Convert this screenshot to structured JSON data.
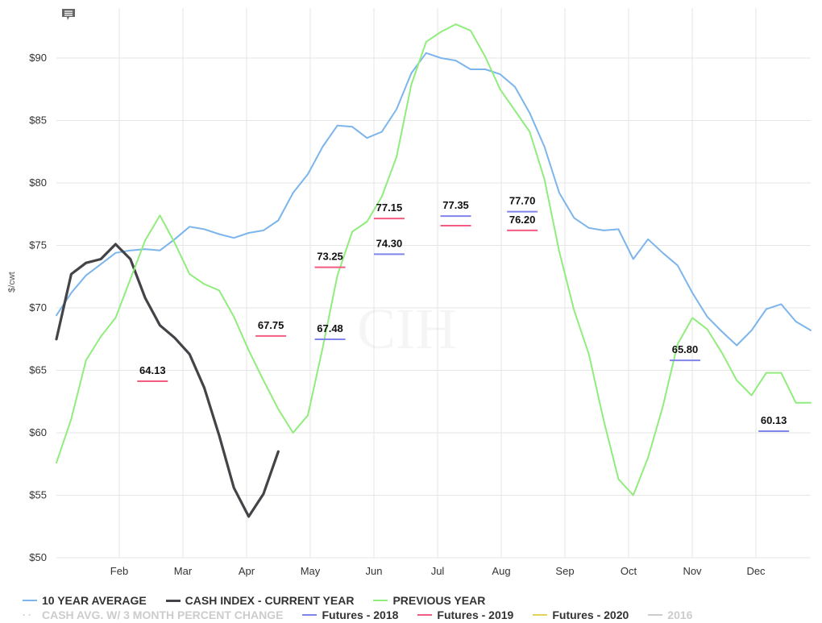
{
  "chart_data": {
    "type": "line",
    "ylabel": "$/cwt",
    "ylim": [
      50,
      94
    ],
    "y_ticks": [
      50,
      55,
      60,
      65,
      70,
      75,
      80,
      85,
      90
    ],
    "y_tick_labels": [
      "$50",
      "$55",
      "$60",
      "$65",
      "$70",
      "$75",
      "$80",
      "$85",
      "$90"
    ],
    "x_month_labels": [
      "Feb",
      "Mar",
      "Apr",
      "May",
      "Jun",
      "Jul",
      "Aug",
      "Sep",
      "Oct",
      "Nov",
      "Dec"
    ],
    "week_range": [
      0,
      51
    ],
    "grid": true,
    "legend_position": "bottom",
    "watermark": "CIH",
    "series": [
      {
        "name": "10 YEAR AVERAGE",
        "color": "#7cb5ec",
        "weeks": [
          0,
          1,
          2,
          3,
          4,
          5,
          6,
          7,
          8,
          9,
          10,
          11,
          12,
          13,
          14,
          15,
          16,
          17,
          18,
          19,
          20,
          21,
          22,
          23,
          24,
          25,
          26,
          27,
          28,
          29,
          30,
          31,
          32,
          33,
          34,
          35,
          36,
          37,
          38,
          39,
          40,
          41,
          42,
          43,
          44,
          45,
          46,
          47,
          48,
          49,
          50,
          51
        ],
        "values": [
          69.4,
          71.2,
          72.6,
          73.5,
          74.4,
          74.6,
          74.7,
          74.6,
          75.5,
          76.5,
          76.3,
          75.9,
          75.6,
          76.0,
          76.2,
          77.0,
          79.2,
          80.7,
          82.9,
          84.6,
          84.5,
          83.6,
          84.1,
          85.9,
          88.8,
          90.4,
          90.0,
          89.8,
          89.1,
          89.1,
          88.7,
          87.7,
          85.6,
          82.9,
          79.2,
          77.2,
          76.4,
          76.2,
          76.3,
          73.9,
          75.5,
          74.4,
          73.4,
          71.2,
          69.3,
          68.1,
          67.0,
          68.2,
          69.9,
          70.3,
          68.9,
          68.2
        ]
      },
      {
        "name": "CASH INDEX - CURRENT YEAR",
        "color": "#434348",
        "weeks": [
          0,
          1,
          2,
          3,
          4,
          5,
          6,
          7,
          8,
          9,
          10,
          11,
          12,
          13,
          14,
          15
        ],
        "values": [
          67.5,
          72.7,
          73.6,
          73.9,
          75.1,
          73.9,
          70.8,
          68.6,
          67.6,
          66.3,
          63.6,
          59.8,
          55.6,
          53.3,
          55.1,
          58.5
        ]
      },
      {
        "name": "PREVIOUS YEAR",
        "color": "#90ed7d",
        "weeks": [
          0,
          1,
          2,
          3,
          4,
          5,
          6,
          7,
          8,
          9,
          10,
          11,
          12,
          13,
          14,
          15,
          16,
          17,
          18,
          19,
          20,
          21,
          22,
          23,
          24,
          25,
          26,
          27,
          28,
          29,
          30,
          31,
          32,
          33,
          34,
          35,
          36,
          37,
          38,
          39,
          40,
          41,
          42,
          43,
          44,
          45,
          46,
          47,
          48,
          49,
          50,
          51
        ],
        "values": [
          57.6,
          61.1,
          65.8,
          67.7,
          69.2,
          72.3,
          75.4,
          77.4,
          75.2,
          72.7,
          71.9,
          71.4,
          69.3,
          66.6,
          64.2,
          61.9,
          60.0,
          61.4,
          66.8,
          72.6,
          76.1,
          76.9,
          78.9,
          82.1,
          87.9,
          91.3,
          92.1,
          92.7,
          92.2,
          90.1,
          87.5,
          85.8,
          84.1,
          80.3,
          74.5,
          69.8,
          66.3,
          61.0,
          56.3,
          55.0,
          58.0,
          62.1,
          67.1,
          69.2,
          68.3,
          66.4,
          64.2,
          63.0,
          64.8,
          64.8,
          62.4,
          62.4
        ]
      },
      {
        "name": "CASH AVG. W/ 3 MONTH PERCENT CHANGE",
        "color": "#cccccc",
        "weeks": [],
        "values": []
      },
      {
        "name": "Futures - 2018",
        "color": "#8085e9",
        "points": [
          {
            "week": 18.5,
            "value": 67.48,
            "label": "67.48"
          },
          {
            "week": 22.5,
            "value": 74.3,
            "label": "74.30"
          },
          {
            "week": 27,
            "value": 77.35,
            "label": "77.35"
          },
          {
            "week": 31.5,
            "value": 77.7,
            "label": "77.70"
          },
          {
            "week": 42.5,
            "value": 65.8,
            "label": "65.80"
          },
          {
            "week": 48.5,
            "value": 60.13,
            "label": "60.13"
          }
        ]
      },
      {
        "name": "Futures - 2019",
        "color": "#f15c80",
        "points": [
          {
            "week": 6.5,
            "value": 64.13,
            "label": "64.13"
          },
          {
            "week": 14.5,
            "value": 67.75,
            "label": "67.75"
          },
          {
            "week": 18.5,
            "value": 73.25,
            "label": "73.25"
          },
          {
            "week": 22.5,
            "value": 77.15,
            "label": "77.15"
          },
          {
            "week": 27,
            "value": 76.58,
            "label": ""
          },
          {
            "week": 31.5,
            "value": 76.2,
            "label": "76.20"
          }
        ]
      },
      {
        "name": "Futures - 2020",
        "color": "#e4d354",
        "points": []
      },
      {
        "name": "2016",
        "color": "#cccccc",
        "points": []
      }
    ]
  },
  "toolbar": {
    "menu_icon": "chat-bubble-icon"
  }
}
